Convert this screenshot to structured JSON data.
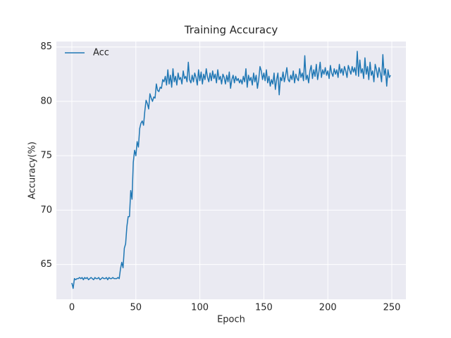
{
  "chart_data": {
    "type": "line",
    "title": "Training Accuracy",
    "xlabel": "Epoch",
    "ylabel": "Accuracy(%)",
    "xlim": [
      -12.1,
      261
    ],
    "ylim": [
      61.8,
      85.5
    ],
    "xticks": [
      0,
      50,
      100,
      150,
      200,
      250
    ],
    "yticks": [
      65,
      70,
      75,
      80,
      85
    ],
    "grid": true,
    "legend": "upper left",
    "x": [
      0,
      1,
      2,
      3,
      4,
      5,
      6,
      7,
      8,
      9,
      10,
      11,
      12,
      13,
      14,
      15,
      16,
      17,
      18,
      19,
      20,
      21,
      22,
      23,
      24,
      25,
      26,
      27,
      28,
      29,
      30,
      31,
      32,
      33,
      34,
      35,
      36,
      37,
      38,
      39,
      40,
      41,
      42,
      43,
      44,
      45,
      46,
      47,
      48,
      49,
      50,
      51,
      52,
      53,
      54,
      55,
      56,
      57,
      58,
      59,
      60,
      61,
      62,
      63,
      64,
      65,
      66,
      67,
      68,
      69,
      70,
      71,
      72,
      73,
      74,
      75,
      76,
      77,
      78,
      79,
      80,
      81,
      82,
      83,
      84,
      85,
      86,
      87,
      88,
      89,
      90,
      91,
      92,
      93,
      94,
      95,
      96,
      97,
      98,
      99,
      100,
      101,
      102,
      103,
      104,
      105,
      106,
      107,
      108,
      109,
      110,
      111,
      112,
      113,
      114,
      115,
      116,
      117,
      118,
      119,
      120,
      121,
      122,
      123,
      124,
      125,
      126,
      127,
      128,
      129,
      130,
      131,
      132,
      133,
      134,
      135,
      136,
      137,
      138,
      139,
      140,
      141,
      142,
      143,
      144,
      145,
      146,
      147,
      148,
      149,
      150,
      151,
      152,
      153,
      154,
      155,
      156,
      157,
      158,
      159,
      160,
      161,
      162,
      163,
      164,
      165,
      166,
      167,
      168,
      169,
      170,
      171,
      172,
      173,
      174,
      175,
      176,
      177,
      178,
      179,
      180,
      181,
      182,
      183,
      184,
      185,
      186,
      187,
      188,
      189,
      190,
      191,
      192,
      193,
      194,
      195,
      196,
      197,
      198,
      199,
      200,
      201,
      202,
      203,
      204,
      205,
      206,
      207,
      208,
      209,
      210,
      211,
      212,
      213,
      214,
      215,
      216,
      217,
      218,
      219,
      220,
      221,
      222,
      223,
      224,
      225,
      226,
      227,
      228,
      229,
      230,
      231,
      232,
      233,
      234,
      235,
      236,
      237,
      238,
      239,
      240,
      241,
      242,
      243,
      244,
      245,
      246,
      247,
      248,
      249
    ],
    "series": [
      {
        "name": "Acc",
        "color": "#1f77b4",
        "values": [
          63.3,
          62.8,
          63.7,
          63.6,
          63.7,
          63.7,
          63.8,
          63.7,
          63.8,
          63.6,
          63.8,
          63.7,
          63.8,
          63.6,
          63.7,
          63.8,
          63.7,
          63.6,
          63.8,
          63.7,
          63.7,
          63.8,
          63.6,
          63.7,
          63.8,
          63.7,
          63.7,
          63.8,
          63.6,
          63.8,
          63.7,
          63.7,
          63.8,
          63.7,
          63.7,
          63.7,
          63.8,
          63.7,
          64.6,
          65.2,
          64.7,
          66.5,
          66.9,
          68.5,
          69.4,
          69.4,
          71.8,
          71.0,
          74.4,
          75.5,
          75.0,
          76.3,
          75.8,
          77.5,
          78.0,
          78.2,
          77.8,
          79.1,
          80.1,
          79.8,
          79.3,
          80.7,
          80.3,
          80.0,
          80.4,
          80.3,
          81.6,
          81.0,
          80.9,
          81.3,
          81.2,
          82.0,
          81.8,
          82.3,
          81.5,
          82.9,
          81.6,
          82.4,
          81.3,
          83.0,
          81.8,
          82.3,
          81.5,
          82.6,
          82.0,
          82.2,
          81.6,
          82.8,
          82.1,
          82.3,
          81.8,
          83.6,
          82.0,
          81.7,
          82.4,
          81.8,
          82.6,
          82.2,
          81.5,
          82.9,
          81.9,
          82.7,
          81.6,
          82.5,
          82.0,
          83.0,
          82.2,
          81.8,
          82.6,
          81.9,
          82.8,
          82.1,
          82.5,
          81.7,
          82.9,
          82.0,
          82.3,
          81.6,
          82.5,
          82.2,
          81.6,
          82.4,
          81.8,
          82.7,
          81.2,
          82.0,
          82.4,
          81.7,
          82.3,
          81.9,
          82.1,
          81.7,
          82.0,
          81.6,
          82.3,
          81.8,
          83.0,
          81.3,
          82.4,
          81.9,
          82.2,
          81.5,
          82.6,
          81.8,
          82.4,
          81.2,
          82.0,
          83.2,
          82.8,
          82.0,
          82.6,
          81.9,
          82.9,
          81.7,
          82.3,
          81.4,
          82.0,
          81.6,
          82.6,
          81.1,
          82.0,
          82.6,
          80.6,
          82.2,
          81.9,
          82.7,
          81.8,
          82.4,
          83.1,
          82.0,
          81.8,
          82.4,
          82.0,
          82.8,
          81.7,
          82.5,
          82.1,
          81.9,
          83.0,
          82.2,
          82.6,
          81.9,
          84.2,
          82.0,
          82.4,
          81.7,
          82.8,
          83.3,
          82.1,
          82.9,
          82.3,
          83.4,
          82.0,
          82.7,
          83.6,
          82.2,
          82.9,
          82.5,
          83.1,
          82.4,
          82.8,
          82.1,
          83.3,
          82.6,
          82.3,
          83.0,
          82.5,
          82.9,
          82.2,
          83.4,
          82.6,
          83.0,
          82.4,
          83.2,
          82.8,
          82.2,
          83.3,
          82.9,
          82.5,
          83.2,
          82.7,
          83.1,
          82.4,
          84.6,
          82.3,
          83.8,
          82.6,
          83.0,
          82.1,
          84.0,
          82.5,
          83.2,
          82.0,
          83.6,
          82.4,
          82.8,
          81.8,
          83.4,
          82.9,
          82.2,
          83.1,
          82.6,
          81.8,
          84.3,
          82.4,
          83.0,
          81.4,
          82.9,
          82.2,
          82.4
        ]
      }
    ]
  }
}
